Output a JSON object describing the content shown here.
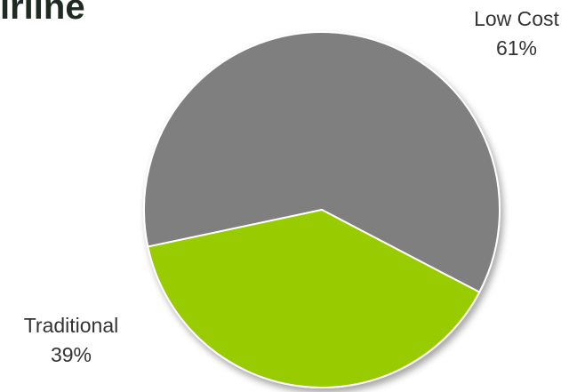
{
  "chart_data": {
    "type": "pie",
    "title": "irline",
    "slices": [
      {
        "label": "Low Cost",
        "value": 61,
        "value_text": "61%",
        "color": "#7f7f7f"
      },
      {
        "label": "Traditional",
        "value": 39,
        "value_text": "39%",
        "color": "#99cc00"
      }
    ]
  }
}
